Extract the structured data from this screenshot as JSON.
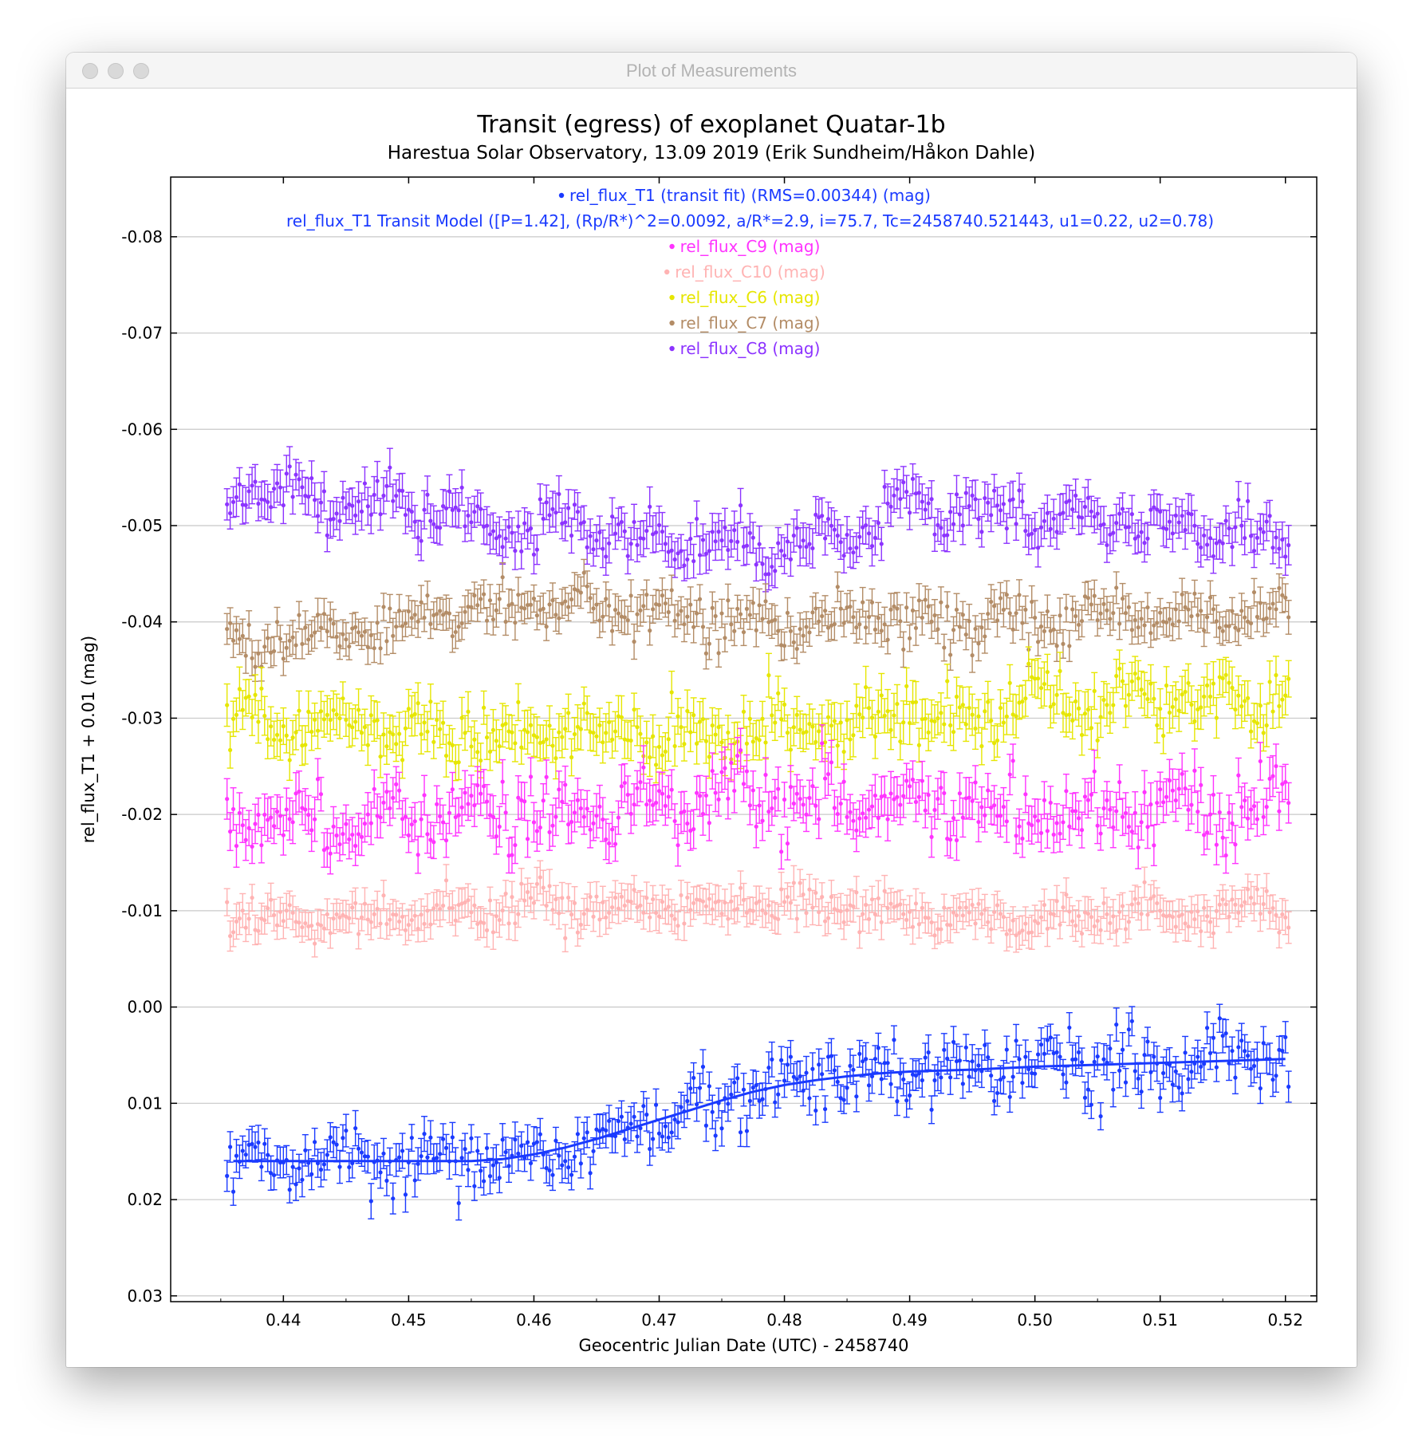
{
  "window": {
    "title": "Plot of Measurements"
  },
  "colors": {
    "grid": "#c8c8c8",
    "axis": "#000000"
  },
  "chart_data": {
    "type": "scatter",
    "title": "Transit (egress) of exoplanet Quatar-1b",
    "subtitle": "Harestua Solar Observatory, 13.09 2019 (Erik Sundheim/Håkon Dahle)",
    "xlabel": "Geocentric Julian Date (UTC) - 2458740",
    "ylabel": "rel_flux_T1 + 0.01 (mag)",
    "xlim": [
      0.431,
      0.5225
    ],
    "ylim": [
      -0.0862,
      0.0306
    ],
    "y_inverted": true,
    "grid": true,
    "x_ticks": [
      "0.44",
      "0.45",
      "0.46",
      "0.47",
      "0.48",
      "0.49",
      "0.50",
      "0.51",
      "0.52"
    ],
    "x_tick_values": [
      0.44,
      0.45,
      0.46,
      0.47,
      0.48,
      0.49,
      0.5,
      0.51,
      0.52
    ],
    "y_ticks": [
      "-0.08",
      "-0.07",
      "-0.06",
      "-0.05",
      "-0.04",
      "-0.03",
      "-0.02",
      "-0.01",
      "0.00",
      "0.01",
      "0.02",
      "0.03"
    ],
    "y_tick_values": [
      -0.08,
      -0.07,
      -0.06,
      -0.05,
      -0.04,
      -0.03,
      -0.02,
      -0.01,
      0.0,
      0.01,
      0.02,
      0.03
    ],
    "legend_position": "top-center",
    "x_start": 0.4355,
    "x_step": 0.00025,
    "points_per_series": 340,
    "series": [
      {
        "name": "rel_flux_T1 (transit fit) (RMS=0.00344) (mag)",
        "color": "#1a3aff",
        "kind": "points",
        "profile": [
          [
            0.4355,
            0.016
          ],
          [
            0.457,
            0.016
          ],
          [
            0.462,
            0.015
          ],
          [
            0.467,
            0.013
          ],
          [
            0.472,
            0.011
          ],
          [
            0.477,
            0.009
          ],
          [
            0.482,
            0.0075
          ],
          [
            0.487,
            0.0068
          ],
          [
            0.495,
            0.0064
          ],
          [
            0.505,
            0.006
          ],
          [
            0.52,
            0.0055
          ]
        ],
        "scatter": 0.0035,
        "err": 0.0016
      },
      {
        "name": "rel_flux_T1 Transit Model ([P=1.42], (Rp/R*)^2=0.0092, a/R*=2.9, i=75.7, Tc=2458740.521443, u1=0.22, u2=0.78)",
        "color": "#1a3aff",
        "kind": "line",
        "points": [
          [
            0.436,
            0.016
          ],
          [
            0.445,
            0.016
          ],
          [
            0.455,
            0.016
          ],
          [
            0.4575,
            0.0158
          ],
          [
            0.46,
            0.0153
          ],
          [
            0.4625,
            0.0146
          ],
          [
            0.465,
            0.0137
          ],
          [
            0.4675,
            0.0127
          ],
          [
            0.47,
            0.0117
          ],
          [
            0.4725,
            0.0107
          ],
          [
            0.475,
            0.0097
          ],
          [
            0.4775,
            0.0088
          ],
          [
            0.48,
            0.0081
          ],
          [
            0.4825,
            0.0076
          ],
          [
            0.485,
            0.0072
          ],
          [
            0.4875,
            0.0069
          ],
          [
            0.49,
            0.0067
          ],
          [
            0.495,
            0.0065
          ],
          [
            0.5,
            0.0062
          ],
          [
            0.505,
            0.006
          ],
          [
            0.51,
            0.0058
          ],
          [
            0.515,
            0.0056
          ],
          [
            0.52,
            0.0054
          ]
        ]
      },
      {
        "name": "rel_flux_C9 (mag)",
        "color": "#ff33ff",
        "kind": "points",
        "profile": [
          [
            0.4355,
            -0.019
          ],
          [
            0.46,
            -0.02
          ],
          [
            0.48,
            -0.022
          ],
          [
            0.5,
            -0.02
          ],
          [
            0.52,
            -0.021
          ]
        ],
        "scatter": 0.004,
        "err": 0.002
      },
      {
        "name": "rel_flux_C10 (mag)",
        "color": "#ffb3b3",
        "kind": "points",
        "profile": [
          [
            0.4355,
            -0.009
          ],
          [
            0.46,
            -0.0105
          ],
          [
            0.48,
            -0.0105
          ],
          [
            0.5,
            -0.009
          ],
          [
            0.52,
            -0.0105
          ]
        ],
        "scatter": 0.0022,
        "err": 0.0016
      },
      {
        "name": "rel_flux_C6 (mag)",
        "color": "#e6e600",
        "kind": "points",
        "profile": [
          [
            0.4355,
            -0.03
          ],
          [
            0.46,
            -0.028
          ],
          [
            0.48,
            -0.029
          ],
          [
            0.5,
            -0.031
          ],
          [
            0.52,
            -0.032
          ]
        ],
        "scatter": 0.0035,
        "err": 0.002
      },
      {
        "name": "rel_flux_C7 (mag)",
        "color": "#b38c66",
        "kind": "points",
        "profile": [
          [
            0.4355,
            -0.038
          ],
          [
            0.46,
            -0.042
          ],
          [
            0.48,
            -0.04
          ],
          [
            0.5,
            -0.04
          ],
          [
            0.52,
            -0.041
          ]
        ],
        "scatter": 0.0028,
        "err": 0.0016
      },
      {
        "name": "rel_flux_C8 (mag)",
        "color": "#8c33ff",
        "kind": "points",
        "profile": [
          [
            0.4355,
            -0.054
          ],
          [
            0.46,
            -0.05
          ],
          [
            0.48,
            -0.047
          ],
          [
            0.49,
            -0.052
          ],
          [
            0.52,
            -0.049
          ]
        ],
        "scatter": 0.003,
        "err": 0.0018
      }
    ]
  }
}
